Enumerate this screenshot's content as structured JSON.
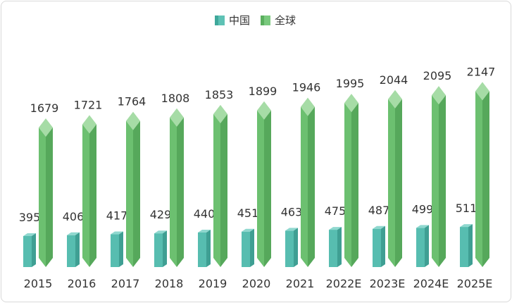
{
  "chart_data": {
    "type": "bar",
    "categories": [
      "2015",
      "2016",
      "2017",
      "2018",
      "2019",
      "2020",
      "2021",
      "2022E",
      "2023E",
      "2024E",
      "2025E"
    ],
    "series": [
      {
        "name": "中国",
        "values": [
          395,
          406,
          417,
          429,
          440,
          451,
          463,
          475,
          487,
          499,
          511
        ],
        "color": "#4fbaad"
      },
      {
        "name": "全球",
        "values": [
          1679,
          1721,
          1764,
          1808,
          1853,
          1899,
          1946,
          1995,
          2044,
          2095,
          2147
        ],
        "color": "#6cc070"
      }
    ],
    "legend": "top-center",
    "grid": false,
    "data_labels": true
  }
}
